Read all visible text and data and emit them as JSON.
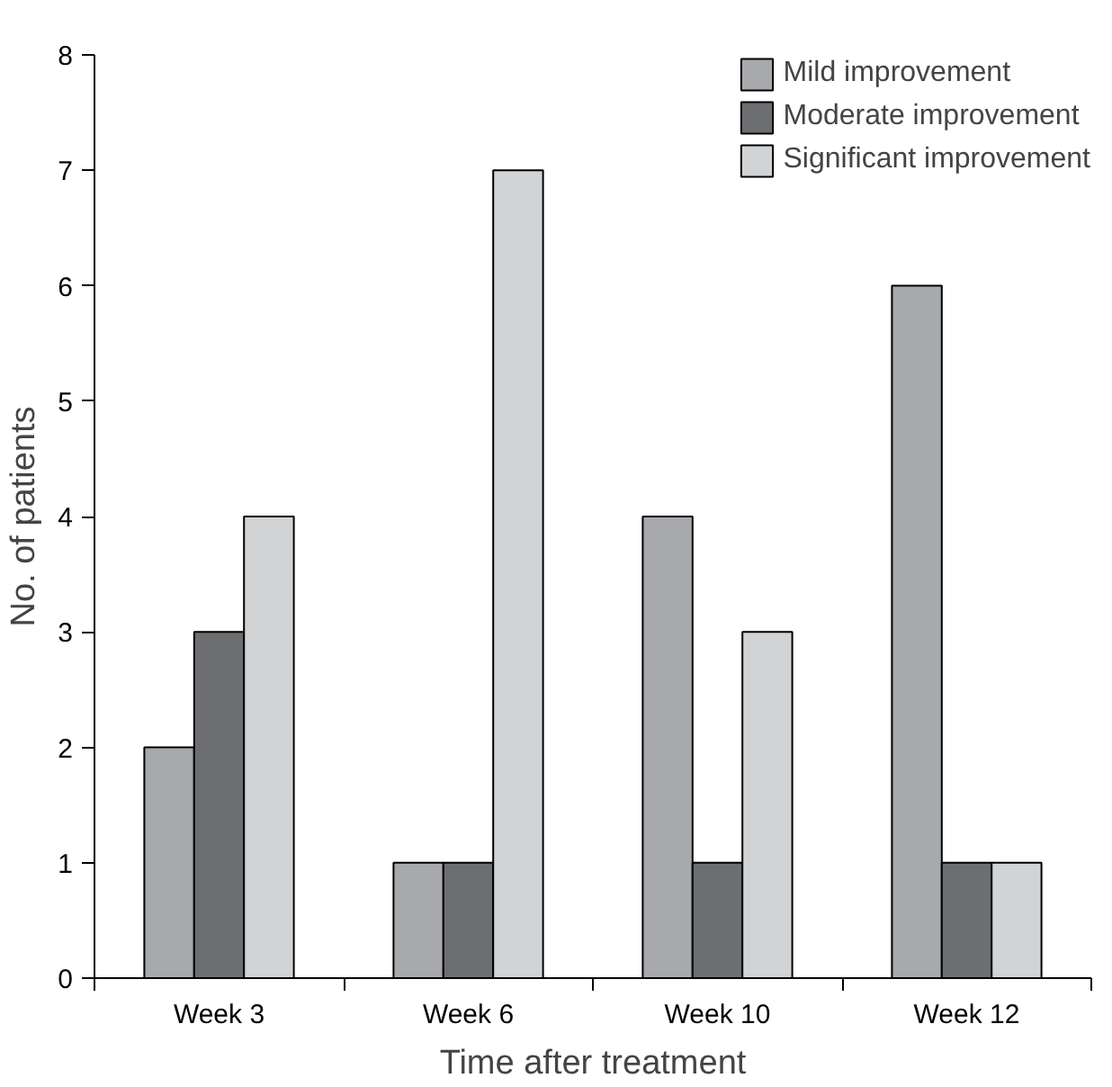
{
  "chart_data": {
    "type": "bar",
    "xlabel": "Time after treatment",
    "ylabel": "No. of patients",
    "categories": [
      "Week 3",
      "Week 6",
      "Week 10",
      "Week 12"
    ],
    "series": [
      {
        "name": "Mild improvement",
        "color": "#a7a9ac",
        "values": [
          2,
          1,
          4,
          6
        ]
      },
      {
        "name": "Moderate improvement",
        "color": "#6d6e71",
        "values": [
          3,
          1,
          1,
          1
        ]
      },
      {
        "name": "Significant improvement",
        "color": "#d1d3d4",
        "values": [
          4,
          7,
          3,
          1
        ]
      }
    ],
    "ylim": [
      0,
      8
    ],
    "yticks": [
      0,
      1,
      2,
      3,
      4,
      5,
      6,
      7,
      8
    ],
    "grid": false,
    "legend": "top right"
  }
}
